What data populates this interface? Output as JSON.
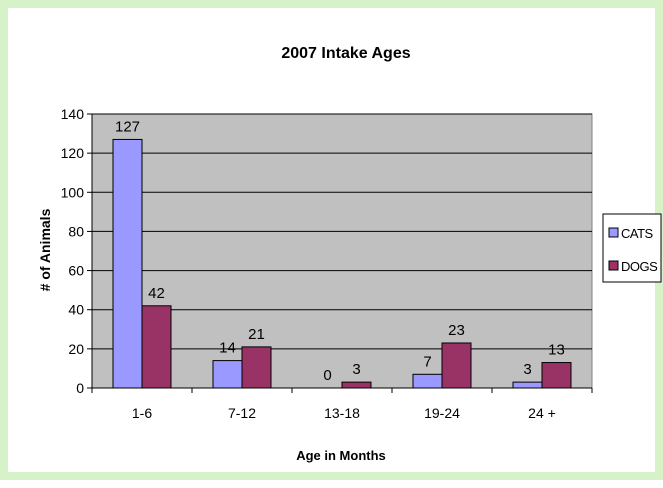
{
  "chart_data": {
    "type": "bar",
    "title": "2007 Intake Ages",
    "xlabel": "Age in Months",
    "ylabel": "# of Animals",
    "categories": [
      "1-6",
      "7-12",
      "13-18",
      "19-24",
      "24 +"
    ],
    "series": [
      {
        "name": "CATS",
        "values": [
          127,
          14,
          0,
          7,
          3
        ],
        "color": "#9999ff"
      },
      {
        "name": "DOGS",
        "values": [
          42,
          21,
          3,
          23,
          13
        ],
        "color": "#993366"
      }
    ],
    "ylim": [
      0,
      140
    ],
    "yticks": [
      0,
      20,
      40,
      60,
      80,
      100,
      120,
      140
    ],
    "grid": true,
    "legend": "right",
    "plot_background": "#c0c0c0"
  }
}
